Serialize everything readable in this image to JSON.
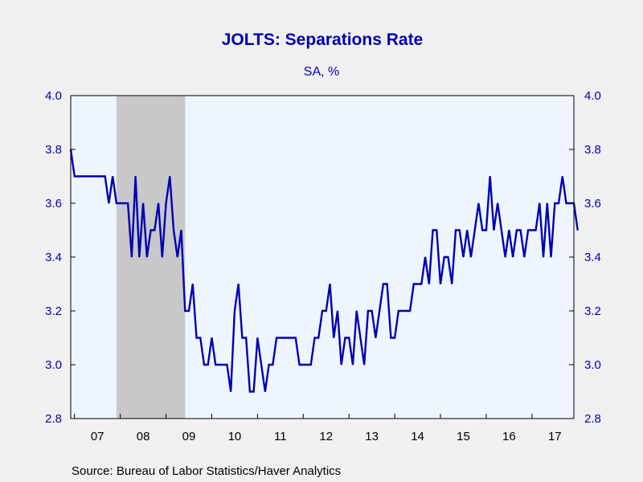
{
  "colors": {
    "background": "#f0f0f0",
    "plot_background": "#eef5ff",
    "recession": "#c8c8c8",
    "series": "#0000b4",
    "text_blue": "#0000b4",
    "text_black": "#000000"
  },
  "chart_data": {
    "type": "line",
    "title": "JOLTS: Separations Rate",
    "subtitle": "SA, %",
    "source": "Source:  Bureau of Labor Statistics/Haver Analytics",
    "ylim": [
      2.8,
      4.0
    ],
    "yticks": [
      "2.8",
      "3.0",
      "3.2",
      "3.4",
      "3.6",
      "3.8",
      "4.0"
    ],
    "xlim": [
      2006.9167,
      2017.9167
    ],
    "year_labels": [
      "07",
      "08",
      "09",
      "10",
      "11",
      "12",
      "13",
      "14",
      "15",
      "16",
      "17"
    ],
    "grid": false,
    "recession_shading": [
      {
        "start": "2007-12",
        "end": "2009-06"
      }
    ],
    "series": [
      {
        "start": "2006-12",
        "frequency": "monthly",
        "values": [
          3.8,
          3.7,
          3.7,
          3.7,
          3.7,
          3.7,
          3.7,
          3.7,
          3.7,
          3.7,
          3.6,
          3.7,
          3.6,
          3.6,
          3.6,
          3.6,
          3.4,
          3.7,
          3.4,
          3.6,
          3.4,
          3.5,
          3.5,
          3.6,
          3.4,
          3.6,
          3.7,
          3.5,
          3.4,
          3.5,
          3.2,
          3.2,
          3.3,
          3.1,
          3.1,
          3.0,
          3.0,
          3.1,
          3.0,
          3.0,
          3.0,
          3.0,
          2.9,
          3.2,
          3.3,
          3.1,
          3.1,
          2.9,
          2.9,
          3.1,
          3.0,
          2.9,
          3.0,
          3.0,
          3.1,
          3.1,
          3.1,
          3.1,
          3.1,
          3.1,
          3.0,
          3.0,
          3.0,
          3.0,
          3.1,
          3.1,
          3.2,
          3.2,
          3.3,
          3.1,
          3.2,
          3.0,
          3.1,
          3.1,
          3.0,
          3.2,
          3.1,
          3.0,
          3.2,
          3.2,
          3.1,
          3.2,
          3.3,
          3.3,
          3.1,
          3.1,
          3.2,
          3.2,
          3.2,
          3.2,
          3.3,
          3.3,
          3.3,
          3.4,
          3.3,
          3.5,
          3.5,
          3.3,
          3.4,
          3.4,
          3.3,
          3.5,
          3.5,
          3.4,
          3.5,
          3.4,
          3.5,
          3.6,
          3.5,
          3.5,
          3.7,
          3.5,
          3.6,
          3.5,
          3.4,
          3.5,
          3.4,
          3.5,
          3.5,
          3.4,
          3.5,
          3.5,
          3.5,
          3.6,
          3.4,
          3.6,
          3.4,
          3.6,
          3.6,
          3.7,
          3.6,
          3.6,
          3.6,
          3.5
        ]
      }
    ]
  }
}
